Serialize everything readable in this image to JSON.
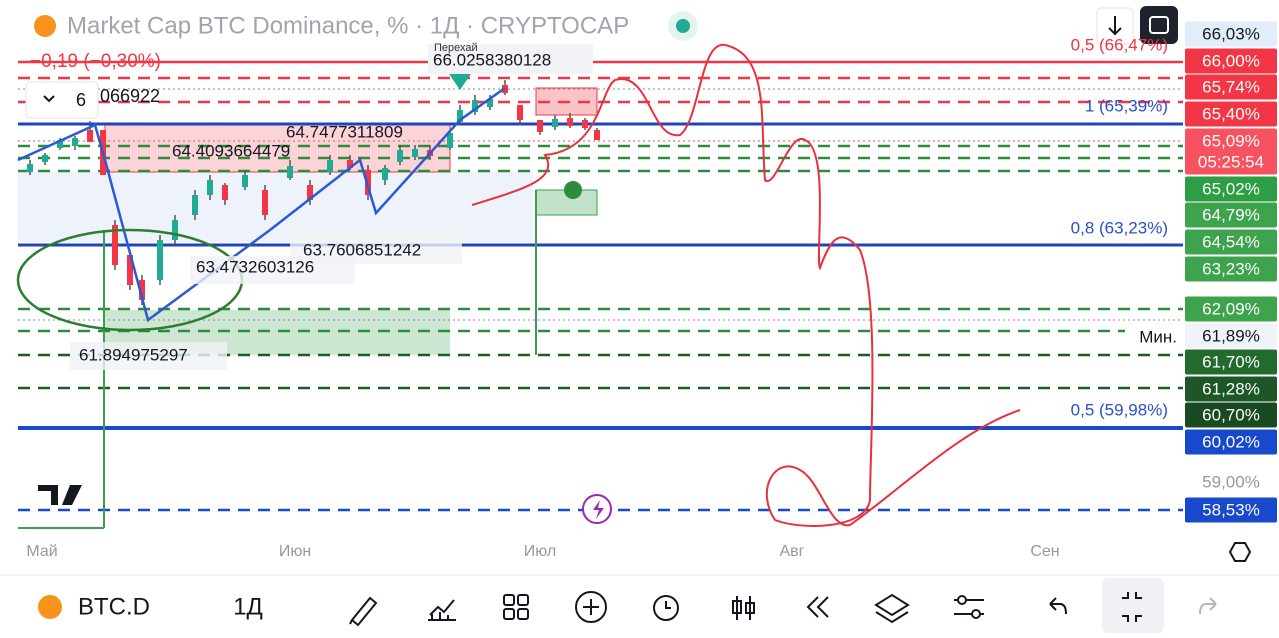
{
  "header": {
    "title": "Market Cap BTC Dominance, % · 1Д · CRYPTOCAP",
    "change": "−0,19 (−0,30%)",
    "collapsed_value": "6",
    "hidden_value": "066922"
  },
  "annotations": {
    "high_caption": "Перехай",
    "high": "66.0258380128",
    "a": "64.7477311809",
    "b": "64.4093664479",
    "c": "63.7606851242",
    "d": "63.4732603126",
    "low": "61.894975297"
  },
  "fib_labels": [
    "0,5 (66,47%)",
    "1 (65,39%)",
    "0,8 (63,23%)",
    "0,5 (59,98%)"
  ],
  "min_label": "Мин.",
  "price_labels": [
    "66,03%",
    "66,00%",
    "65,74%",
    "65,40%",
    "65,09%",
    "05:25:54",
    "65,02%",
    "64,79%",
    "64,54%",
    "63,23%",
    "62,09%",
    "61,89%",
    "61,70%",
    "61,28%",
    "60,70%",
    "60,02%",
    "59,00%",
    "58,53%"
  ],
  "time_labels": [
    "Май",
    "Июн",
    "Июл",
    "Авг",
    "Сен"
  ],
  "toolbar": {
    "symbol": "BTC.D",
    "interval": "1Д"
  }
}
